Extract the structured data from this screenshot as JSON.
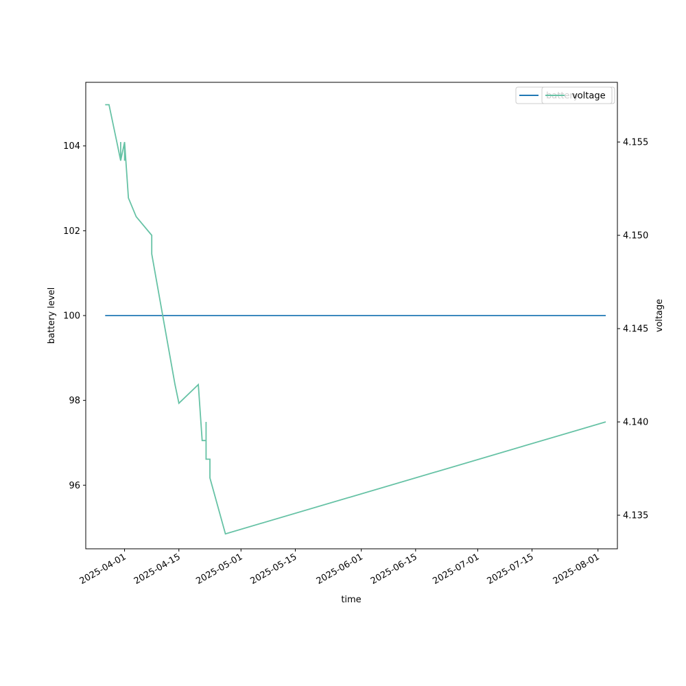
{
  "chart_data": {
    "type": "line",
    "xlabel": "time",
    "ylabel_left": "battery level",
    "ylabel_right": "voltage",
    "x_ticks": [
      "2025-04-01",
      "2025-04-15",
      "2025-05-01",
      "2025-05-15",
      "2025-06-01",
      "2025-06-15",
      "2025-07-01",
      "2025-07-15",
      "2025-08-01"
    ],
    "xlim": [
      "2025-03-22",
      "2025-08-06"
    ],
    "y_left_ticks": [
      96,
      98,
      100,
      102,
      104
    ],
    "y_left_lim": [
      94.5,
      105.5
    ],
    "y_right_ticks": [
      4.135,
      4.14,
      4.145,
      4.15,
      4.155
    ],
    "y_right_lim": [
      4.1332,
      4.1582
    ],
    "grid": false,
    "legend": {
      "placement": "top-right",
      "entries": [
        "battery",
        "voltage"
      ]
    },
    "series": [
      {
        "name": "battery",
        "axis": "left",
        "color": "#1f77b4",
        "points": [
          {
            "x": "2025-03-27",
            "y": 100
          },
          {
            "x": "2025-08-03",
            "y": 100
          }
        ]
      },
      {
        "name": "voltage",
        "axis": "right",
        "color": "#66c2a5",
        "points": [
          {
            "x": "2025-03-27",
            "y": 4.157
          },
          {
            "x": "2025-03-28",
            "y": 4.157
          },
          {
            "x": "2025-03-30",
            "y": 4.155
          },
          {
            "x": "2025-03-31",
            "y": 4.154
          },
          {
            "x": "2025-03-31",
            "y": 4.155
          },
          {
            "x": "2025-03-31",
            "y": 4.154
          },
          {
            "x": "2025-04-01",
            "y": 4.155
          },
          {
            "x": "2025-04-01",
            "y": 4.154
          },
          {
            "x": "2025-04-01",
            "y": 4.155
          },
          {
            "x": "2025-04-02",
            "y": 4.152
          },
          {
            "x": "2025-04-04",
            "y": 4.151
          },
          {
            "x": "2025-04-04",
            "y": 4.151
          },
          {
            "x": "2025-04-08",
            "y": 4.15
          },
          {
            "x": "2025-04-08",
            "y": 4.149
          },
          {
            "x": "2025-04-14",
            "y": 4.142
          },
          {
            "x": "2025-04-15",
            "y": 4.141
          },
          {
            "x": "2025-04-20",
            "y": 4.142
          },
          {
            "x": "2025-04-21",
            "y": 4.139
          },
          {
            "x": "2025-04-22",
            "y": 4.139
          },
          {
            "x": "2025-04-22",
            "y": 4.14
          },
          {
            "x": "2025-04-22",
            "y": 4.138
          },
          {
            "x": "2025-04-23",
            "y": 4.138
          },
          {
            "x": "2025-04-23",
            "y": 4.137
          },
          {
            "x": "2025-04-27",
            "y": 4.134
          },
          {
            "x": "2025-08-03",
            "y": 4.14
          }
        ]
      }
    ]
  }
}
